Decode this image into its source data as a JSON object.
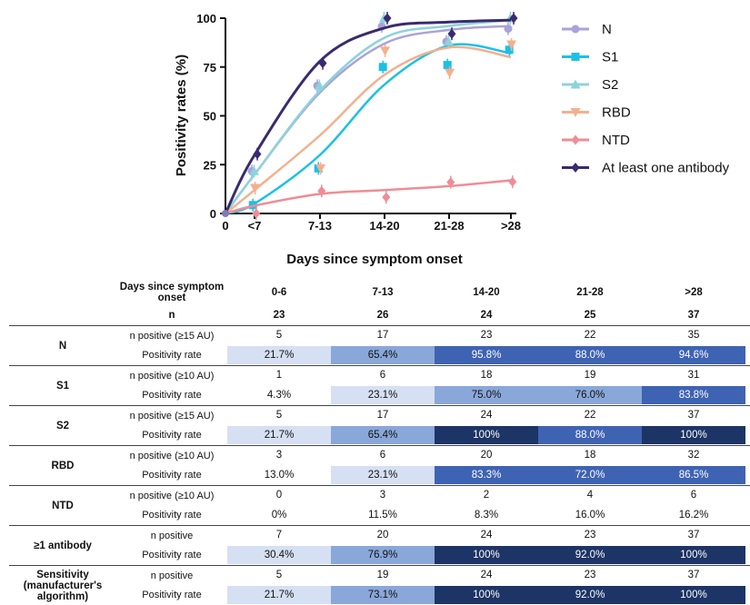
{
  "chart_data": {
    "type": "line",
    "xlabel": "Days since symptom onset",
    "ylabel": "Positivity rates (%)",
    "categories": [
      "0",
      "<7",
      "7-13",
      "14-20",
      "21-28",
      ">28"
    ],
    "y_ticks": [
      "0",
      "25",
      "50",
      "75",
      "100"
    ],
    "ylim": [
      0,
      100
    ],
    "legend": "right",
    "series": [
      {
        "name": "N",
        "color": "#a9a3d8",
        "marker": "circle",
        "values": [
          0,
          21.7,
          65.4,
          95.8,
          88.0,
          94.6
        ],
        "curve": [
          0,
          20,
          62,
          87,
          94,
          96
        ]
      },
      {
        "name": "S1",
        "color": "#1cc0e6",
        "marker": "square",
        "values": [
          0,
          4.3,
          23.1,
          75.0,
          76.0,
          83.8
        ],
        "curve": [
          0,
          5,
          30,
          66,
          86,
          82
        ]
      },
      {
        "name": "S2",
        "color": "#8ed2dc",
        "marker": "triangle",
        "values": [
          0,
          21.7,
          65.4,
          100,
          88.0,
          100
        ],
        "curve": [
          0,
          20,
          63,
          90,
          96,
          99
        ]
      },
      {
        "name": "RBD",
        "color": "#f3b08e",
        "marker": "triangle-down",
        "values": [
          0,
          13.0,
          23.1,
          83.3,
          72.0,
          86.5
        ],
        "curve": [
          0,
          12,
          40,
          71,
          85,
          80
        ]
      },
      {
        "name": "NTD",
        "color": "#f08c95",
        "marker": "diamond",
        "values": [
          0,
          0,
          11.5,
          8.3,
          16.0,
          16.2
        ],
        "curve": [
          0,
          4,
          10,
          12,
          14,
          17
        ]
      },
      {
        "name": "At least one antibody",
        "color": "#3a2a6e",
        "marker": "diamond",
        "values": [
          0,
          30.4,
          76.9,
          100,
          92.0,
          100
        ],
        "curve": [
          0,
          30,
          78,
          95,
          98,
          99
        ]
      }
    ]
  },
  "table": {
    "header_label_1": "Days since symptom onset",
    "header_label_2": "n",
    "columns": [
      "0-6",
      "7-13",
      "14-20",
      "21-28",
      ">28"
    ],
    "n_values": [
      "23",
      "26",
      "24",
      "25",
      "37"
    ],
    "shade_colors": [
      "#ffffff",
      "#d6e0f3",
      "#8aa7d9",
      "#3f63b3",
      "#1d3466"
    ],
    "groups": [
      {
        "name": "N",
        "rows": [
          {
            "label": "n positive (≥15 AU)",
            "values": [
              "5",
              "17",
              "23",
              "22",
              "35"
            ],
            "shades": [
              0,
              0,
              0,
              0,
              0
            ]
          },
          {
            "label": "Positivity rate",
            "values": [
              "21.7%",
              "65.4%",
              "95.8%",
              "88.0%",
              "94.6%"
            ],
            "shades": [
              1,
              2,
              3,
              3,
              3
            ]
          }
        ]
      },
      {
        "name": "S1",
        "rows": [
          {
            "label": "n positive (≥10 AU)",
            "values": [
              "1",
              "6",
              "18",
              "19",
              "31"
            ],
            "shades": [
              0,
              0,
              0,
              0,
              0
            ]
          },
          {
            "label": "Positivity rate",
            "values": [
              "4.3%",
              "23.1%",
              "75.0%",
              "76.0%",
              "83.8%"
            ],
            "shades": [
              0,
              1,
              2,
              2,
              3
            ]
          }
        ]
      },
      {
        "name": "S2",
        "rows": [
          {
            "label": "n positive (≥15 AU)",
            "values": [
              "5",
              "17",
              "24",
              "22",
              "37"
            ],
            "shades": [
              0,
              0,
              0,
              0,
              0
            ]
          },
          {
            "label": "Positivity rate",
            "values": [
              "21.7%",
              "65.4%",
              "100%",
              "88.0%",
              "100%"
            ],
            "shades": [
              1,
              2,
              4,
              3,
              4
            ]
          }
        ]
      },
      {
        "name": "RBD",
        "rows": [
          {
            "label": "n positive (≥10 AU)",
            "values": [
              "3",
              "6",
              "20",
              "18",
              "32"
            ],
            "shades": [
              0,
              0,
              0,
              0,
              0
            ]
          },
          {
            "label": "Positivity rate",
            "values": [
              "13.0%",
              "23.1%",
              "83.3%",
              "72.0%",
              "86.5%"
            ],
            "shades": [
              0,
              1,
              3,
              3,
              3
            ]
          }
        ]
      },
      {
        "name": "NTD",
        "rows": [
          {
            "label": "n positive (≥10 AU)",
            "values": [
              "0",
              "3",
              "2",
              "4",
              "6"
            ],
            "shades": [
              0,
              0,
              0,
              0,
              0
            ]
          },
          {
            "label": "Positivity rate",
            "values": [
              "0%",
              "11.5%",
              "8.3%",
              "16.0%",
              "16.2%"
            ],
            "shades": [
              0,
              0,
              0,
              0,
              0
            ]
          }
        ]
      },
      {
        "name": "≥1 antibody",
        "rows": [
          {
            "label": "n positive",
            "values": [
              "7",
              "20",
              "24",
              "23",
              "37"
            ],
            "shades": [
              0,
              0,
              0,
              0,
              0
            ]
          },
          {
            "label": "Positivity rate",
            "values": [
              "30.4%",
              "76.9%",
              "100%",
              "92.0%",
              "100%"
            ],
            "shades": [
              1,
              2,
              4,
              4,
              4
            ]
          }
        ]
      },
      {
        "name": "Sensitivity (manufacturer's algorithm)",
        "rows": [
          {
            "label": "n positive",
            "values": [
              "5",
              "19",
              "24",
              "23",
              "37"
            ],
            "shades": [
              0,
              0,
              0,
              0,
              0
            ]
          },
          {
            "label": "Positivity rate",
            "values": [
              "21.7%",
              "73.1%",
              "100%",
              "92.0%",
              "100%"
            ],
            "shades": [
              1,
              2,
              4,
              4,
              4
            ]
          }
        ]
      }
    ]
  }
}
